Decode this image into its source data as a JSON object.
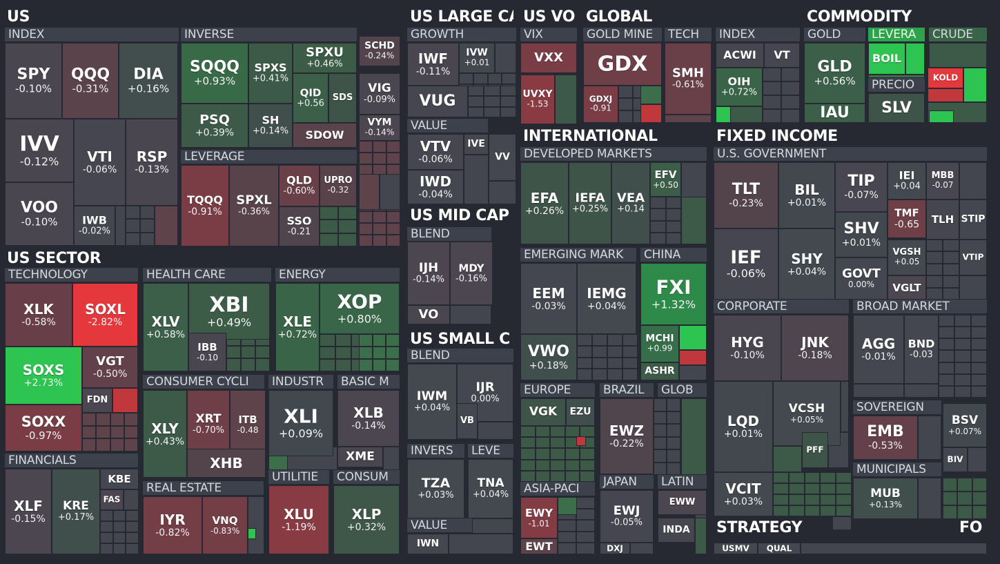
{
  "colors": {
    "background": "#262931",
    "header_bar": "#3d414c",
    "neutral": "#43464f",
    "green_light": "#3d5a48",
    "green": "#3c6e4c",
    "green_strong": "#2fa34c",
    "green_max": "#2ec452",
    "red_light": "#5e434a",
    "red": "#7a3d45",
    "red_strong": "#c0383c",
    "red_max": "#e5383d"
  },
  "groups": [
    {
      "label": "US"
    },
    {
      "label": "US LARGE CA"
    },
    {
      "label": "US VO"
    },
    {
      "label": "GLOBAL"
    },
    {
      "label": "COMMODITY"
    },
    {
      "label": "US SECTOR"
    },
    {
      "label": "INTERNATIONAL"
    },
    {
      "label": "FIXED INCOME"
    },
    {
      "label": "US MID CAP"
    },
    {
      "label": "US SMALL C"
    },
    {
      "label": "STRATEGY"
    },
    {
      "label": "FO"
    }
  ],
  "subgroups": [
    {
      "label": "INDEX"
    },
    {
      "label": "INVERSE"
    },
    {
      "label": "LEVERAGE"
    },
    {
      "label": "GROWTH"
    },
    {
      "label": "VALUE"
    },
    {
      "label": "VIX"
    },
    {
      "label": "GOLD MINE"
    },
    {
      "label": "TECH"
    },
    {
      "label": "INDEX"
    },
    {
      "label": "GOLD"
    },
    {
      "label": "LEVERA"
    },
    {
      "label": "CRUDE"
    },
    {
      "label": "PRECIO"
    },
    {
      "label": "DEVELOPED MARKETS"
    },
    {
      "label": "U.S. GOVERNMENT"
    },
    {
      "label": "BLEND"
    },
    {
      "label": "TECHNOLOGY"
    },
    {
      "label": "HEALTH CARE"
    },
    {
      "label": "ENERGY"
    },
    {
      "label": "EMERGING MARK"
    },
    {
      "label": "CHINA"
    },
    {
      "label": "BLEND"
    },
    {
      "label": "CONSUMER CYCLI"
    },
    {
      "label": "INDUSTR"
    },
    {
      "label": "BASIC M"
    },
    {
      "label": "CORPORATE"
    },
    {
      "label": "BROAD MARKET"
    },
    {
      "label": "FINANCIALS"
    },
    {
      "label": "EUROPE"
    },
    {
      "label": "BRAZIL"
    },
    {
      "label": "GLOB"
    },
    {
      "label": "SOVEREIGN"
    },
    {
      "label": "INVERS"
    },
    {
      "label": "LEVE"
    },
    {
      "label": "MUNICIPALS"
    },
    {
      "label": "REAL ESTATE"
    },
    {
      "label": "UTILITIE"
    },
    {
      "label": "CONSUM"
    },
    {
      "label": "JAPAN"
    },
    {
      "label": "LATIN"
    },
    {
      "label": "ASIA-PACI"
    },
    {
      "label": "VALUE"
    }
  ],
  "tiles": [
    {
      "ticker": "SPY",
      "change": "-0.10%",
      "color": "#4a4650"
    },
    {
      "ticker": "QQQ",
      "change": "-0.31%",
      "color": "#5a434b"
    },
    {
      "ticker": "DIA",
      "change": "+0.16%",
      "color": "#424e4e"
    },
    {
      "ticker": "IVV",
      "change": "-0.12%",
      "color": "#4a4650"
    },
    {
      "ticker": "VTI",
      "change": "-0.06%",
      "color": "#464650"
    },
    {
      "ticker": "RSP",
      "change": "-0.13%",
      "color": "#4a4650"
    },
    {
      "ticker": "VOO",
      "change": "-0.10%",
      "color": "#4a4650"
    },
    {
      "ticker": "IWB",
      "change": "-0.02%",
      "color": "#454750"
    },
    {
      "ticker": "SQQQ",
      "change": "+0.93%",
      "color": "#386a48"
    },
    {
      "ticker": "SPXS",
      "change": "+0.41%",
      "color": "#3d5a48"
    },
    {
      "ticker": "SPXU",
      "change": "+0.46%",
      "color": "#3c5c48"
    },
    {
      "ticker": "QID",
      "change": "+0.56",
      "color": "#3b5f48"
    },
    {
      "ticker": "SDS",
      "change": "",
      "color": "#3f5449"
    },
    {
      "ticker": "PSQ",
      "change": "+0.39%",
      "color": "#3d5a48"
    },
    {
      "ticker": "SH",
      "change": "+0.14%",
      "color": "#414f4c"
    },
    {
      "ticker": "SDOW",
      "change": "",
      "color": "#5a434b"
    },
    {
      "ticker": "TQQQ",
      "change": "-0.91%",
      "color": "#7a3d45"
    },
    {
      "ticker": "SPXL",
      "change": "-0.36%",
      "color": "#58434b"
    },
    {
      "ticker": "QLD",
      "change": "-0.60%",
      "color": "#6a4048"
    },
    {
      "ticker": "UPRO",
      "change": "-0.32",
      "color": "#58434b"
    },
    {
      "ticker": "SSO",
      "change": "-0.21",
      "color": "#51454d"
    },
    {
      "ticker": "SCHD",
      "change": "-0.24%",
      "color": "#53444c"
    },
    {
      "ticker": "VIG",
      "change": "-0.09%",
      "color": "#4a4650"
    },
    {
      "ticker": "VYM",
      "change": "-0.14%",
      "color": "#4c4650"
    },
    {
      "ticker": "IWF",
      "change": "-0.11%",
      "color": "#4a4650"
    },
    {
      "ticker": "IVW",
      "change": "+0.01",
      "color": "#43484f"
    },
    {
      "ticker": "VUG",
      "change": "",
      "color": "#464650"
    },
    {
      "ticker": "VTV",
      "change": "-0.06%",
      "color": "#464650"
    },
    {
      "ticker": "IVE",
      "change": "",
      "color": "#464650"
    },
    {
      "ticker": "VV",
      "change": "",
      "color": "#454750"
    },
    {
      "ticker": "IWD",
      "change": "-0.04%",
      "color": "#454750"
    },
    {
      "ticker": "VXX",
      "change": "",
      "color": "#7a3d45"
    },
    {
      "ticker": "UVXY",
      "change": "-1.53",
      "color": "#8a3a42"
    },
    {
      "ticker": "GDX",
      "change": "",
      "color": "#6e3f47"
    },
    {
      "ticker": "GDXJ",
      "change": "-0.91",
      "color": "#7a3d45"
    },
    {
      "ticker": "SMH",
      "change": "-0.61%",
      "color": "#6a4048"
    },
    {
      "ticker": "ACWI",
      "change": "",
      "color": "#464650"
    },
    {
      "ticker": "VT",
      "change": "",
      "color": "#464650"
    },
    {
      "ticker": "OIH",
      "change": "+0.72%",
      "color": "#3a6448"
    },
    {
      "ticker": "GLD",
      "change": "+0.56%",
      "color": "#3b5f48"
    },
    {
      "ticker": "IAU",
      "change": "",
      "color": "#3b5f48"
    },
    {
      "ticker": "BOIL",
      "change": "",
      "color": "#2ec452"
    },
    {
      "ticker": "KOLD",
      "change": "",
      "color": "#e5383d"
    },
    {
      "ticker": "SLV",
      "change": "",
      "color": "#3f5449"
    },
    {
      "ticker": "EFA",
      "change": "+0.26%",
      "color": "#3f5449"
    },
    {
      "ticker": "IEFA",
      "change": "+0.25%",
      "color": "#3f5449"
    },
    {
      "ticker": "VEA",
      "change": "+0.14",
      "color": "#414f4c"
    },
    {
      "ticker": "EFV",
      "change": "+0.50",
      "color": "#3c5d48"
    },
    {
      "ticker": "TLT",
      "change": "-0.23%",
      "color": "#53444c"
    },
    {
      "ticker": "BIL",
      "change": "+0.01%",
      "color": "#43484f"
    },
    {
      "ticker": "TIP",
      "change": "-0.07%",
      "color": "#484650"
    },
    {
      "ticker": "IEI",
      "change": "+0.04",
      "color": "#43494f"
    },
    {
      "ticker": "MBB",
      "change": "-0.07",
      "color": "#484650"
    },
    {
      "ticker": "TMF",
      "change": "-0.65",
      "color": "#6e3f47"
    },
    {
      "ticker": "TLH",
      "change": "",
      "color": "#464650"
    },
    {
      "ticker": "STIP",
      "change": "",
      "color": "#454750"
    },
    {
      "ticker": "SHV",
      "change": "+0.01%",
      "color": "#43484f"
    },
    {
      "ticker": "VGSH",
      "change": "+0.05",
      "color": "#43494f"
    },
    {
      "ticker": "VTIP",
      "change": "",
      "color": "#454750"
    },
    {
      "ticker": "IEF",
      "change": "-0.06%",
      "color": "#464650"
    },
    {
      "ticker": "SHY",
      "change": "+0.04%",
      "color": "#43494f"
    },
    {
      "ticker": "GOVT",
      "change": "0.00%",
      "color": "#454750"
    },
    {
      "ticker": "VGLT",
      "change": "",
      "color": "#4c4650"
    },
    {
      "ticker": "IJH",
      "change": "-0.14%",
      "color": "#4c4650"
    },
    {
      "ticker": "MDY",
      "change": "-0.16%",
      "color": "#4c4650"
    },
    {
      "ticker": "VO",
      "change": "",
      "color": "#4a4650"
    },
    {
      "ticker": "XLK",
      "change": "-0.58%",
      "color": "#683f48"
    },
    {
      "ticker": "SOXL",
      "change": "-2.82%",
      "color": "#e5383d"
    },
    {
      "ticker": "SOXS",
      "change": "+2.73%",
      "color": "#2ec452"
    },
    {
      "ticker": "VGT",
      "change": "-0.50%",
      "color": "#62414a"
    },
    {
      "ticker": "FDN",
      "change": "",
      "color": "#4c4650"
    },
    {
      "ticker": "SOXX",
      "change": "-0.97%",
      "color": "#7a3d45"
    },
    {
      "ticker": "XLV",
      "change": "+0.58%",
      "color": "#3b5f48"
    },
    {
      "ticker": "XBI",
      "change": "+0.49%",
      "color": "#3c5c48"
    },
    {
      "ticker": "IBB",
      "change": "-0.10",
      "color": "#4a4650"
    },
    {
      "ticker": "XLE",
      "change": "+0.72%",
      "color": "#3a6448"
    },
    {
      "ticker": "XOP",
      "change": "+0.80%",
      "color": "#396648"
    },
    {
      "ticker": "EEM",
      "change": "-0.03%",
      "color": "#454750"
    },
    {
      "ticker": "IEMG",
      "change": "+0.04%",
      "color": "#43494f"
    },
    {
      "ticker": "FXI",
      "change": "+1.32%",
      "color": "#2e8a48"
    },
    {
      "ticker": "MCHI",
      "change": "+0.99",
      "color": "#356e48"
    },
    {
      "ticker": "ASHR",
      "change": "",
      "color": "#3c5c48"
    },
    {
      "ticker": "VWO",
      "change": "+0.18%",
      "color": "#414f4c"
    },
    {
      "ticker": "IWM",
      "change": "+0.04%",
      "color": "#43494f"
    },
    {
      "ticker": "IJR",
      "change": "0.00%",
      "color": "#454750"
    },
    {
      "ticker": "VB",
      "change": "",
      "color": "#454750"
    },
    {
      "ticker": "XLY",
      "change": "+0.43%",
      "color": "#3d5a48"
    },
    {
      "ticker": "XRT",
      "change": "-0.70%",
      "color": "#6e3f47"
    },
    {
      "ticker": "ITB",
      "change": "-0.48",
      "color": "#5e434a"
    },
    {
      "ticker": "XHB",
      "change": "",
      "color": "#53444c"
    },
    {
      "ticker": "XLI",
      "change": "+0.09%",
      "color": "#42494e"
    },
    {
      "ticker": "XLB",
      "change": "-0.14%",
      "color": "#4c4650"
    },
    {
      "ticker": "XME",
      "change": "",
      "color": "#4a4650"
    },
    {
      "ticker": "HYG",
      "change": "-0.10%",
      "color": "#4a4650"
    },
    {
      "ticker": "JNK",
      "change": "-0.18%",
      "color": "#4e454e"
    },
    {
      "ticker": "AGG",
      "change": "-0.01%",
      "color": "#454750"
    },
    {
      "ticker": "BND",
      "change": "-0.03",
      "color": "#454750"
    },
    {
      "ticker": "LQD",
      "change": "+0.01%",
      "color": "#43484f"
    },
    {
      "ticker": "VCSH",
      "change": "+0.05%",
      "color": "#43494f"
    },
    {
      "ticker": "PFF",
      "change": "",
      "color": "#3f5449"
    },
    {
      "ticker": "EMB",
      "change": "-0.53%",
      "color": "#64414a"
    },
    {
      "ticker": "BSV",
      "change": "+0.07%",
      "color": "#42494e"
    },
    {
      "ticker": "BIV",
      "change": "",
      "color": "#454750"
    },
    {
      "ticker": "MUB",
      "change": "+0.13%",
      "color": "#414f4c"
    },
    {
      "ticker": "VCIT",
      "change": "+0.03%",
      "color": "#43494f"
    },
    {
      "ticker": "XLF",
      "change": "-0.15%",
      "color": "#4c4650"
    },
    {
      "ticker": "KRE",
      "change": "+0.17%",
      "color": "#414f4c"
    },
    {
      "ticker": "KBE",
      "change": "",
      "color": "#454750"
    },
    {
      "ticker": "FAS",
      "change": "",
      "color": "#4c4650"
    },
    {
      "ticker": "VGK",
      "change": "",
      "color": "#3f5449"
    },
    {
      "ticker": "EZU",
      "change": "",
      "color": "#414f4c"
    },
    {
      "ticker": "EWZ",
      "change": "-0.22%",
      "color": "#51454d"
    },
    {
      "ticker": "TZA",
      "change": "+0.03%",
      "color": "#43494f"
    },
    {
      "ticker": "TNA",
      "change": "+0.04%",
      "color": "#43494f"
    },
    {
      "ticker": "IYR",
      "change": "-0.82%",
      "color": "#743e46"
    },
    {
      "ticker": "VNQ",
      "change": "-0.83%",
      "color": "#743e46"
    },
    {
      "ticker": "XLU",
      "change": "-1.19%",
      "color": "#883b43"
    },
    {
      "ticker": "XLP",
      "change": "+0.32%",
      "color": "#3e5749"
    },
    {
      "ticker": "EWJ",
      "change": "-0.05%",
      "color": "#464650"
    },
    {
      "ticker": "EWW",
      "change": "",
      "color": "#4c4650"
    },
    {
      "ticker": "EWY",
      "change": "-1.01",
      "color": "#843c44"
    },
    {
      "ticker": "EWT",
      "change": "",
      "color": "#5e434a"
    },
    {
      "ticker": "INDA",
      "change": "",
      "color": "#464650"
    },
    {
      "ticker": "DXJ",
      "change": "",
      "color": "#454750"
    },
    {
      "ticker": "IWN",
      "change": "",
      "color": "#454750"
    },
    {
      "ticker": "USMV",
      "change": "",
      "color": "#454750"
    },
    {
      "ticker": "QUAL",
      "change": "",
      "color": "#454750"
    }
  ]
}
